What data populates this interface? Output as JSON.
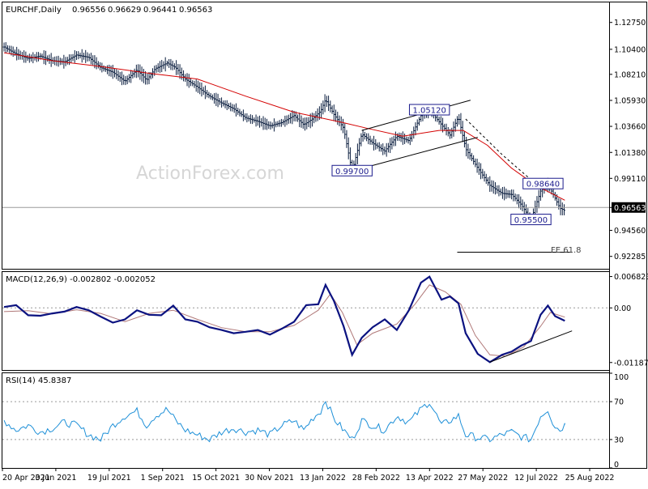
{
  "chart_data": {
    "type": "candlestick",
    "symbol_header": "EURCHF,Daily",
    "ohlc_header": [
      "0.96556",
      "0.96629",
      "0.96441",
      "0.96563"
    ],
    "watermark": "ActionForex.com",
    "current_price_label": "0.96563",
    "price_ylim": [
      0.912,
      1.145
    ],
    "price_ticks": [
      "1.12750",
      "1.10400",
      "1.08210",
      "1.05930",
      "1.03660",
      "1.01380",
      "0.99110",
      "0.96563",
      "0.94560",
      "0.92285"
    ],
    "x_range_days": [
      0,
      496
    ],
    "date_ticks": [
      "20 Apr 2021",
      "3 Jun 2021",
      "19 Jul 2021",
      "1 Sep 2021",
      "15 Oct 2021",
      "30 Nov 2021",
      "13 Jan 2022",
      "28 Feb 2022",
      "13 Apr 2022",
      "27 May 2022",
      "12 Jul 2022",
      "25 Aug 2022"
    ],
    "price_path": [
      [
        0,
        1.106
      ],
      [
        10,
        1.1
      ],
      [
        20,
        1.096
      ],
      [
        30,
        1.098
      ],
      [
        40,
        1.094
      ],
      [
        50,
        1.093
      ],
      [
        60,
        1.099
      ],
      [
        70,
        1.097
      ],
      [
        80,
        1.088
      ],
      [
        90,
        1.084
      ],
      [
        100,
        1.076
      ],
      [
        110,
        1.086
      ],
      [
        118,
        1.077
      ],
      [
        125,
        1.087
      ],
      [
        135,
        1.092
      ],
      [
        142,
        1.088
      ],
      [
        150,
        1.078
      ],
      [
        160,
        1.071
      ],
      [
        170,
        1.063
      ],
      [
        180,
        1.057
      ],
      [
        190,
        1.052
      ],
      [
        200,
        1.044
      ],
      [
        210,
        1.041
      ],
      [
        220,
        1.037
      ],
      [
        230,
        1.04
      ],
      [
        240,
        1.046
      ],
      [
        248,
        1.038
      ],
      [
        255,
        1.043
      ],
      [
        262,
        1.05
      ],
      [
        266,
        1.06
      ],
      [
        273,
        1.047
      ],
      [
        281,
        1.035
      ],
      [
        288,
        0.997
      ],
      [
        296,
        1.03
      ],
      [
        305,
        1.022
      ],
      [
        315,
        1.015
      ],
      [
        325,
        1.028
      ],
      [
        335,
        1.024
      ],
      [
        345,
        1.046
      ],
      [
        352,
        1.051
      ],
      [
        362,
        1.038
      ],
      [
        369,
        1.029
      ],
      [
        376,
        1.045
      ],
      [
        382,
        1.017
      ],
      [
        392,
        1.0
      ],
      [
        402,
        0.985
      ],
      [
        412,
        0.978
      ],
      [
        420,
        0.977
      ],
      [
        428,
        0.968
      ],
      [
        436,
        0.955
      ],
      [
        444,
        0.98
      ],
      [
        450,
        0.986
      ],
      [
        455,
        0.976
      ],
      [
        460,
        0.965
      ],
      [
        464,
        0.963
      ]
    ],
    "ma_path": [
      [
        0,
        1.101
      ],
      [
        40,
        1.094
      ],
      [
        80,
        1.089
      ],
      [
        120,
        1.083
      ],
      [
        160,
        1.078
      ],
      [
        200,
        1.063
      ],
      [
        240,
        1.049
      ],
      [
        280,
        1.04
      ],
      [
        300,
        1.035
      ],
      [
        330,
        1.028
      ],
      [
        360,
        1.033
      ],
      [
        380,
        1.033
      ],
      [
        400,
        1.02
      ],
      [
        420,
        1.0
      ],
      [
        440,
        0.985
      ],
      [
        464,
        0.972
      ]
    ],
    "labels": [
      {
        "text": "0.99700",
        "day": 288,
        "price": 0.9975
      },
      {
        "text": "1.05120",
        "day": 352,
        "price": 1.0508
      },
      {
        "text": "0.98640",
        "day": 446,
        "price": 0.9862
      },
      {
        "text": "0.95500",
        "day": 436,
        "price": 0.9548
      },
      {
        "text": "FE 61.8",
        "day": 465,
        "price": 0.9288
      }
    ],
    "channel_upper": [
      [
        296,
        1.033
      ],
      [
        386,
        1.0595
      ]
    ],
    "channel_lower": [
      [
        300,
        1.001
      ],
      [
        392,
        1.027
      ]
    ],
    "fe_line": [
      [
        375,
        0.9265
      ],
      [
        470,
        0.9265
      ]
    ],
    "dashed_projection": [
      [
        382,
        1.043
      ],
      [
        412,
        1.012
      ],
      [
        440,
        0.9862
      ]
    ],
    "macd": {
      "label": "MACD(12,26,9) -0.002802 -0.002052",
      "ylim": [
        -0.0135,
        0.0078
      ],
      "ticks": [
        "0.006823",
        "0.00",
        "-0.011874"
      ],
      "macd_path": [
        [
          0,
          0.0002
        ],
        [
          10,
          0.0006
        ],
        [
          20,
          -0.0016
        ],
        [
          30,
          -0.0017
        ],
        [
          40,
          -0.0012
        ],
        [
          50,
          -0.0008
        ],
        [
          60,
          0.0002
        ],
        [
          70,
          -0.0005
        ],
        [
          80,
          -0.0019
        ],
        [
          90,
          -0.0032
        ],
        [
          100,
          -0.0025
        ],
        [
          110,
          -0.0005
        ],
        [
          120,
          -0.0015
        ],
        [
          130,
          -0.0016
        ],
        [
          140,
          0.0005
        ],
        [
          150,
          -0.0025
        ],
        [
          160,
          -0.003
        ],
        [
          170,
          -0.0042
        ],
        [
          180,
          -0.0048
        ],
        [
          190,
          -0.0055
        ],
        [
          200,
          -0.0052
        ],
        [
          210,
          -0.0048
        ],
        [
          220,
          -0.0058
        ],
        [
          230,
          -0.0045
        ],
        [
          240,
          -0.003
        ],
        [
          250,
          0.0006
        ],
        [
          260,
          0.0008
        ],
        [
          266,
          0.005
        ],
        [
          273,
          0.0015
        ],
        [
          281,
          -0.004
        ],
        [
          288,
          -0.0102
        ],
        [
          296,
          -0.0065
        ],
        [
          305,
          -0.0042
        ],
        [
          315,
          -0.0025
        ],
        [
          325,
          -0.0048
        ],
        [
          335,
          -0.0005
        ],
        [
          345,
          0.0055
        ],
        [
          352,
          0.0068
        ],
        [
          362,
          0.0018
        ],
        [
          369,
          0.0025
        ],
        [
          376,
          0.001
        ],
        [
          382,
          -0.0055
        ],
        [
          392,
          -0.01
        ],
        [
          402,
          -0.0118
        ],
        [
          412,
          -0.0102
        ],
        [
          420,
          -0.0095
        ],
        [
          428,
          -0.0082
        ],
        [
          436,
          -0.0072
        ],
        [
          444,
          -0.0015
        ],
        [
          450,
          0.0005
        ],
        [
          456,
          -0.0018
        ],
        [
          464,
          -0.0028
        ]
      ],
      "signal_path": [
        [
          0,
          -0.0008
        ],
        [
          20,
          -0.0006
        ],
        [
          40,
          -0.0013
        ],
        [
          60,
          -0.0004
        ],
        [
          80,
          -0.0012
        ],
        [
          100,
          -0.003
        ],
        [
          120,
          -0.0012
        ],
        [
          140,
          -0.0005
        ],
        [
          160,
          -0.0025
        ],
        [
          180,
          -0.0043
        ],
        [
          200,
          -0.0052
        ],
        [
          220,
          -0.0052
        ],
        [
          240,
          -0.0038
        ],
        [
          260,
          -0.0005
        ],
        [
          270,
          0.003
        ],
        [
          280,
          -0.001
        ],
        [
          292,
          -0.008
        ],
        [
          305,
          -0.0055
        ],
        [
          325,
          -0.0035
        ],
        [
          340,
          0.0008
        ],
        [
          352,
          0.005
        ],
        [
          365,
          0.0035
        ],
        [
          378,
          0.0008
        ],
        [
          390,
          -0.006
        ],
        [
          402,
          -0.0102
        ],
        [
          415,
          -0.0105
        ],
        [
          430,
          -0.0085
        ],
        [
          444,
          -0.004
        ],
        [
          452,
          -0.001
        ],
        [
          464,
          -0.002
        ]
      ],
      "trendline": [
        [
          402,
          -0.0118
        ],
        [
          470,
          -0.005
        ]
      ]
    },
    "rsi": {
      "label": "RSI(14) 45.8387",
      "ylim": [
        0,
        100
      ],
      "ticks": [
        "100",
        "70",
        "30",
        "0"
      ],
      "levels": [
        70,
        30
      ],
      "rsi_path": [
        [
          0,
          50
        ],
        [
          10,
          40
        ],
        [
          20,
          45
        ],
        [
          30,
          38
        ],
        [
          40,
          42
        ],
        [
          50,
          48
        ],
        [
          60,
          45
        ],
        [
          70,
          35
        ],
        [
          80,
          30
        ],
        [
          90,
          45
        ],
        [
          100,
          55
        ],
        [
          110,
          60
        ],
        [
          118,
          45
        ],
        [
          125,
          55
        ],
        [
          135,
          62
        ],
        [
          142,
          50
        ],
        [
          150,
          40
        ],
        [
          160,
          35
        ],
        [
          170,
          30
        ],
        [
          180,
          38
        ],
        [
          190,
          42
        ],
        [
          200,
          38
        ],
        [
          210,
          40
        ],
        [
          220,
          35
        ],
        [
          230,
          45
        ],
        [
          240,
          50
        ],
        [
          248,
          40
        ],
        [
          255,
          52
        ],
        [
          262,
          60
        ],
        [
          266,
          72
        ],
        [
          273,
          52
        ],
        [
          281,
          40
        ],
        [
          288,
          30
        ],
        [
          296,
          50
        ],
        [
          305,
          45
        ],
        [
          315,
          40
        ],
        [
          325,
          55
        ],
        [
          335,
          48
        ],
        [
          345,
          62
        ],
        [
          352,
          70
        ],
        [
          362,
          45
        ],
        [
          369,
          50
        ],
        [
          376,
          55
        ],
        [
          382,
          35
        ],
        [
          392,
          32
        ],
        [
          402,
          30
        ],
        [
          412,
          35
        ],
        [
          420,
          38
        ],
        [
          428,
          33
        ],
        [
          436,
          30
        ],
        [
          444,
          55
        ],
        [
          450,
          62
        ],
        [
          455,
          45
        ],
        [
          460,
          40
        ],
        [
          464,
          45.8
        ]
      ]
    }
  }
}
